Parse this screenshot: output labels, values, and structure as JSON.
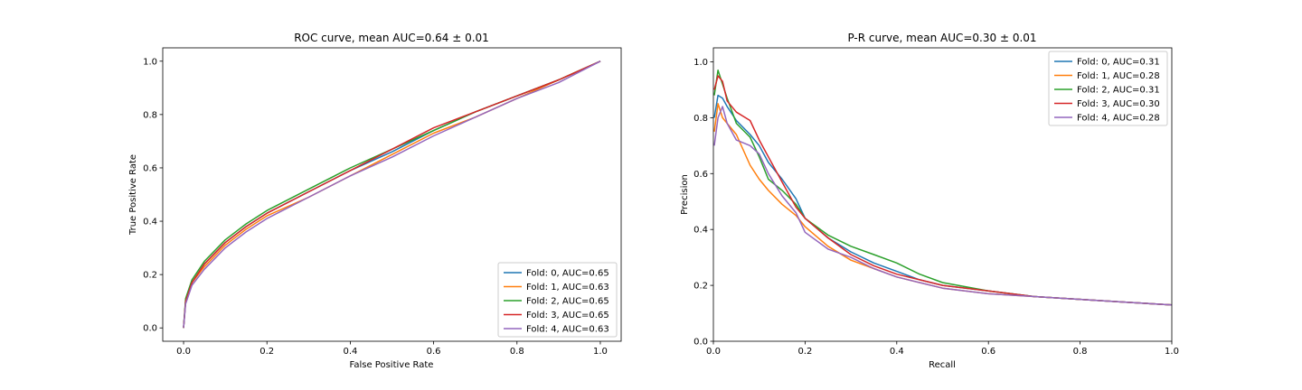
{
  "chart_data": [
    {
      "type": "line",
      "title": "ROC curve, mean AUC=0.64 ± 0.01",
      "xlabel": "False Positive Rate",
      "ylabel": "True Positive Rate",
      "xlim": [
        -0.05,
        1.05
      ],
      "ylim": [
        -0.05,
        1.05
      ],
      "xticks": [
        0.0,
        0.2,
        0.4,
        0.6,
        0.8,
        1.0
      ],
      "yticks": [
        0.0,
        0.2,
        0.4,
        0.6,
        0.8,
        1.0
      ],
      "xtick_labels": [
        "0.0",
        "0.2",
        "0.4",
        "0.6",
        "0.8",
        "1.0"
      ],
      "ytick_labels": [
        "0.0",
        "0.2",
        "0.4",
        "0.6",
        "0.8",
        "1.0"
      ],
      "grid": false,
      "legend_position": "lower-right",
      "series": [
        {
          "name": "Fold: 0, AUC=0.65",
          "color": "#1f77b4",
          "x": [
            0,
            0.005,
            0.02,
            0.05,
            0.1,
            0.15,
            0.2,
            0.3,
            0.4,
            0.5,
            0.6,
            0.7,
            0.8,
            0.9,
            1.0
          ],
          "y": [
            0,
            0.1,
            0.17,
            0.24,
            0.32,
            0.38,
            0.43,
            0.51,
            0.59,
            0.66,
            0.74,
            0.81,
            0.87,
            0.93,
            1.0
          ]
        },
        {
          "name": "Fold: 1, AUC=0.63",
          "color": "#ff7f0e",
          "x": [
            0,
            0.005,
            0.02,
            0.05,
            0.1,
            0.15,
            0.2,
            0.3,
            0.4,
            0.5,
            0.6,
            0.7,
            0.8,
            0.9,
            1.0
          ],
          "y": [
            0,
            0.1,
            0.17,
            0.23,
            0.31,
            0.37,
            0.42,
            0.49,
            0.57,
            0.65,
            0.73,
            0.79,
            0.86,
            0.93,
            1.0
          ]
        },
        {
          "name": "Fold: 2, AUC=0.65",
          "color": "#2ca02c",
          "x": [
            0,
            0.005,
            0.02,
            0.05,
            0.1,
            0.15,
            0.2,
            0.3,
            0.4,
            0.5,
            0.6,
            0.7,
            0.8,
            0.9,
            1.0
          ],
          "y": [
            0,
            0.11,
            0.18,
            0.25,
            0.33,
            0.39,
            0.44,
            0.52,
            0.6,
            0.67,
            0.74,
            0.81,
            0.87,
            0.93,
            1.0
          ]
        },
        {
          "name": "Fold: 3, AUC=0.65",
          "color": "#d62728",
          "x": [
            0,
            0.005,
            0.02,
            0.05,
            0.1,
            0.15,
            0.2,
            0.3,
            0.4,
            0.5,
            0.6,
            0.7,
            0.8,
            0.9,
            1.0
          ],
          "y": [
            0,
            0.1,
            0.17,
            0.24,
            0.32,
            0.38,
            0.43,
            0.51,
            0.59,
            0.67,
            0.75,
            0.81,
            0.87,
            0.93,
            1.0
          ]
        },
        {
          "name": "Fold: 4, AUC=0.63",
          "color": "#9467bd",
          "x": [
            0,
            0.005,
            0.02,
            0.05,
            0.1,
            0.15,
            0.2,
            0.3,
            0.4,
            0.5,
            0.6,
            0.7,
            0.8,
            0.9,
            1.0
          ],
          "y": [
            0,
            0.09,
            0.16,
            0.22,
            0.3,
            0.36,
            0.41,
            0.49,
            0.57,
            0.64,
            0.72,
            0.79,
            0.86,
            0.92,
            1.0
          ]
        }
      ]
    },
    {
      "type": "line",
      "title": "P-R curve, mean AUC=0.30 ± 0.01",
      "xlabel": "Recall",
      "ylabel": "Precision",
      "xlim": [
        0.0,
        1.0
      ],
      "ylim": [
        0.0,
        1.05
      ],
      "xticks": [
        0.0,
        0.2,
        0.4,
        0.6,
        0.8,
        1.0
      ],
      "yticks": [
        0.0,
        0.2,
        0.4,
        0.6,
        0.8,
        1.0
      ],
      "xtick_labels": [
        "0.0",
        "0.2",
        "0.4",
        "0.6",
        "0.8",
        "1.0"
      ],
      "ytick_labels": [
        "0.0",
        "0.2",
        "0.4",
        "0.6",
        "0.8",
        "1.0"
      ],
      "grid": false,
      "legend_position": "upper-right",
      "series": [
        {
          "name": "Fold: 0, AUC=0.31",
          "color": "#1f77b4",
          "x": [
            0.002,
            0.01,
            0.02,
            0.03,
            0.05,
            0.08,
            0.1,
            0.12,
            0.15,
            0.18,
            0.2,
            0.25,
            0.3,
            0.35,
            0.4,
            0.45,
            0.5,
            0.6,
            0.7,
            0.8,
            0.9,
            1.0
          ],
          "y": [
            0.8,
            0.88,
            0.87,
            0.84,
            0.79,
            0.74,
            0.7,
            0.64,
            0.58,
            0.51,
            0.44,
            0.37,
            0.32,
            0.28,
            0.25,
            0.22,
            0.2,
            0.18,
            0.16,
            0.15,
            0.14,
            0.13
          ]
        },
        {
          "name": "Fold: 1, AUC=0.28",
          "color": "#ff7f0e",
          "x": [
            0.002,
            0.01,
            0.02,
            0.03,
            0.05,
            0.08,
            0.1,
            0.12,
            0.15,
            0.18,
            0.2,
            0.25,
            0.3,
            0.35,
            0.4,
            0.45,
            0.5,
            0.6,
            0.7,
            0.8,
            0.9,
            1.0
          ],
          "y": [
            0.75,
            0.85,
            0.8,
            0.78,
            0.74,
            0.63,
            0.58,
            0.54,
            0.49,
            0.45,
            0.41,
            0.34,
            0.29,
            0.26,
            0.23,
            0.21,
            0.19,
            0.17,
            0.16,
            0.15,
            0.14,
            0.13
          ]
        },
        {
          "name": "Fold: 2, AUC=0.31",
          "color": "#2ca02c",
          "x": [
            0.002,
            0.01,
            0.02,
            0.03,
            0.05,
            0.08,
            0.1,
            0.12,
            0.15,
            0.18,
            0.2,
            0.25,
            0.3,
            0.35,
            0.4,
            0.45,
            0.5,
            0.6,
            0.7,
            0.8,
            0.9,
            1.0
          ],
          "y": [
            0.88,
            0.97,
            0.92,
            0.87,
            0.78,
            0.73,
            0.66,
            0.58,
            0.54,
            0.49,
            0.44,
            0.38,
            0.34,
            0.31,
            0.28,
            0.24,
            0.21,
            0.18,
            0.16,
            0.15,
            0.14,
            0.13
          ]
        },
        {
          "name": "Fold: 3, AUC=0.30",
          "color": "#d62728",
          "x": [
            0.002,
            0.01,
            0.02,
            0.03,
            0.05,
            0.08,
            0.1,
            0.12,
            0.15,
            0.18,
            0.2,
            0.25,
            0.3,
            0.35,
            0.4,
            0.45,
            0.5,
            0.6,
            0.7,
            0.8,
            0.9,
            1.0
          ],
          "y": [
            0.9,
            0.95,
            0.93,
            0.86,
            0.82,
            0.79,
            0.72,
            0.66,
            0.57,
            0.48,
            0.44,
            0.37,
            0.31,
            0.27,
            0.24,
            0.22,
            0.2,
            0.18,
            0.16,
            0.15,
            0.14,
            0.13
          ]
        },
        {
          "name": "Fold: 4, AUC=0.28",
          "color": "#9467bd",
          "x": [
            0.002,
            0.01,
            0.02,
            0.03,
            0.05,
            0.08,
            0.1,
            0.12,
            0.15,
            0.18,
            0.2,
            0.25,
            0.3,
            0.35,
            0.4,
            0.45,
            0.5,
            0.6,
            0.7,
            0.8,
            0.9,
            1.0
          ],
          "y": [
            0.7,
            0.8,
            0.84,
            0.78,
            0.72,
            0.7,
            0.67,
            0.6,
            0.52,
            0.46,
            0.39,
            0.33,
            0.3,
            0.26,
            0.23,
            0.21,
            0.19,
            0.17,
            0.16,
            0.15,
            0.14,
            0.13
          ]
        }
      ]
    }
  ]
}
